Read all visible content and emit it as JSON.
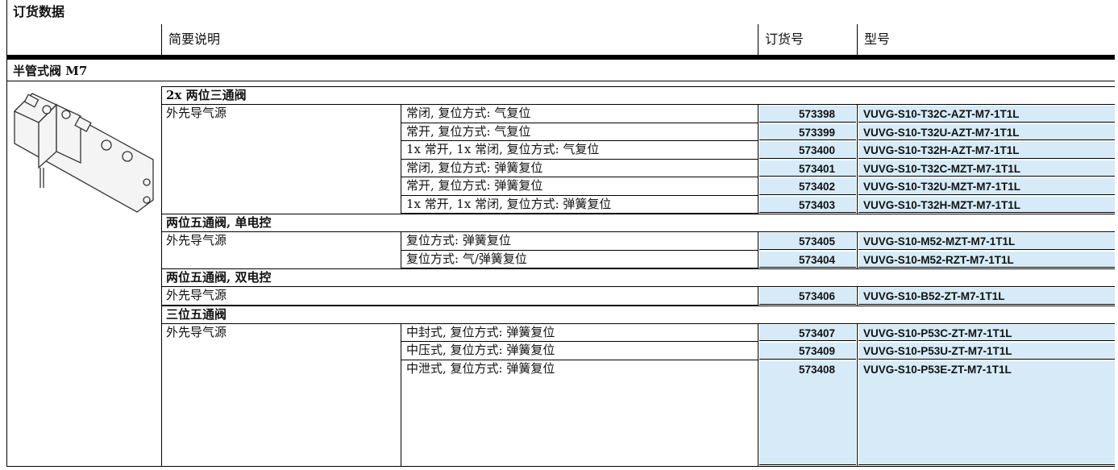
{
  "header": {
    "title": "订货数据",
    "columns": [
      "简要说明",
      "订货号",
      "型号"
    ]
  },
  "section": {
    "title": "半管式阀 M7",
    "groups": [
      {
        "title": "2x 两位三通阀",
        "rows": [
          {
            "pilot": "外先导气源",
            "description": "常闭, 复位方式: 气复位",
            "order_no": "573398",
            "model": "VUVG-S10-T32C-AZT-M7-1T1L"
          },
          {
            "description": "常开, 复位方式: 气复位",
            "order_no": "573399",
            "model": "VUVG-S10-T32U-AZT-M7-1T1L"
          },
          {
            "description": "1x 常开, 1x 常闭, 复位方式: 气复位",
            "order_no": "573400",
            "model": "VUVG-S10-T32H-AZT-M7-1T1L"
          },
          {
            "description": "常闭, 复位方式: 弹簧复位",
            "order_no": "573401",
            "model": "VUVG-S10-T32C-MZT-M7-1T1L"
          },
          {
            "description": "常开, 复位方式: 弹簧复位",
            "order_no": "573402",
            "model": "VUVG-S10-T32U-MZT-M7-1T1L"
          },
          {
            "description": "1x 常开, 1x 常闭, 复位方式: 弹簧复位",
            "order_no": "573403",
            "model": "VUVG-S10-T32H-MZT-M7-1T1L"
          }
        ]
      },
      {
        "title": "两位五通阀, 单电控",
        "rows": [
          {
            "pilot": "外先导气源",
            "description": "复位方式: 弹簧复位",
            "order_no": "573405",
            "model": "VUVG-S10-M52-MZT-M7-1T1L"
          },
          {
            "description": "复位方式: 气/弹簧复位",
            "order_no": "573404",
            "model": "VUVG-S10-M52-RZT-M7-1T1L"
          }
        ]
      },
      {
        "title": "两位五通阀, 双电控",
        "rows": [
          {
            "pilot": "外先导气源",
            "order_no": "573406",
            "model": "VUVG-S10-B52-ZT-M7-1T1L"
          }
        ]
      },
      {
        "title": "三位五通阀",
        "rows": [
          {
            "pilot": "外先导气源",
            "description": "中封式, 复位方式: 弹簧复位",
            "order_no": "573407",
            "model": "VUVG-S10-P53C-ZT-M7-1T1L"
          },
          {
            "description": "中压式, 复位方式: 弹簧复位",
            "order_no": "573409",
            "model": "VUVG-S10-P53U-ZT-M7-1T1L"
          },
          {
            "description": "中泄式, 复位方式: 弹簧复位",
            "order_no": "573408",
            "model": "VUVG-S10-P53E-ZT-M7-1T1L"
          }
        ]
      }
    ]
  }
}
